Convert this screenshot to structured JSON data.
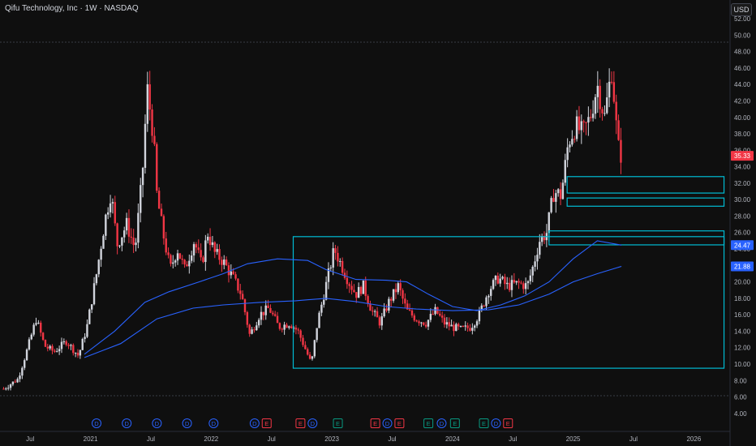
{
  "header": {
    "title": "Qifu Technology, Inc · 1W · NASDAQ",
    "currency": "USD"
  },
  "colors": {
    "background": "#0f0f0f",
    "up": "#d1d4dc",
    "down": "#f23645",
    "zone": "#00bcd4",
    "ma": "#2962ff",
    "last_price_badge": "#f23645",
    "ma_badge": "#2962ff",
    "dividend_marker": "#2962ff",
    "earnings_up_marker": "#089981",
    "earnings_down_marker": "#f23645"
  },
  "chart_data": {
    "type": "candlestick",
    "title": "Qifu Technology, Inc · 1W · NASDAQ",
    "x_tick_labels": [
      "Jul",
      "2021",
      "Jul",
      "2022",
      "Jul",
      "2023",
      "Jul",
      "2024",
      "Jul",
      "2025",
      "Jul",
      "2026"
    ],
    "y_tick_labels": [
      "4.00",
      "6.00",
      "8.00",
      "10.00",
      "12.00",
      "14.00",
      "16.00",
      "18.00",
      "20.00",
      "22.00",
      "24.00",
      "26.00",
      "28.00",
      "30.00",
      "32.00",
      "34.00",
      "36.00",
      "38.00",
      "40.00",
      "42.00",
      "44.00",
      "46.00",
      "48.00",
      "50.00",
      "52.00"
    ],
    "ylim": [
      3,
      52.5
    ],
    "time_range": [
      2020.25,
      2026.3
    ],
    "price_path": [
      [
        2020.28,
        7.0
      ],
      [
        2020.4,
        8.2
      ],
      [
        2020.48,
        12.0
      ],
      [
        2020.55,
        15.5
      ],
      [
        2020.62,
        12.2
      ],
      [
        2020.7,
        11.5
      ],
      [
        2020.8,
        12.8
      ],
      [
        2020.9,
        11.0
      ],
      [
        2020.97,
        14.5
      ],
      [
        2021.05,
        21.0
      ],
      [
        2021.12,
        27.5
      ],
      [
        2021.17,
        31.0
      ],
      [
        2021.22,
        24.5
      ],
      [
        2021.3,
        27.0
      ],
      [
        2021.37,
        24.0
      ],
      [
        2021.43,
        33.0
      ],
      [
        2021.47,
        43.5
      ],
      [
        2021.52,
        38.0
      ],
      [
        2021.55,
        30.5
      ],
      [
        2021.6,
        26.0
      ],
      [
        2021.66,
        21.5
      ],
      [
        2021.72,
        24.0
      ],
      [
        2021.78,
        21.5
      ],
      [
        2021.86,
        25.0
      ],
      [
        2021.92,
        22.0
      ],
      [
        2021.97,
        26.0
      ],
      [
        2022.03,
        23.5
      ],
      [
        2022.1,
        22.5
      ],
      [
        2022.18,
        20.5
      ],
      [
        2022.25,
        18.5
      ],
      [
        2022.32,
        13.5
      ],
      [
        2022.4,
        16.0
      ],
      [
        2022.48,
        16.8
      ],
      [
        2022.56,
        14.5
      ],
      [
        2022.65,
        15.0
      ],
      [
        2022.72,
        14.0
      ],
      [
        2022.79,
        11.5
      ],
      [
        2022.83,
        10.0
      ],
      [
        2022.88,
        15.0
      ],
      [
        2022.95,
        19.5
      ],
      [
        2023.02,
        24.0
      ],
      [
        2023.08,
        22.0
      ],
      [
        2023.14,
        20.0
      ],
      [
        2023.2,
        18.5
      ],
      [
        2023.26,
        19.5
      ],
      [
        2023.33,
        16.5
      ],
      [
        2023.4,
        15.0
      ],
      [
        2023.47,
        17.5
      ],
      [
        2023.55,
        19.5
      ],
      [
        2023.62,
        16.5
      ],
      [
        2023.7,
        15.5
      ],
      [
        2023.78,
        15.0
      ],
      [
        2023.86,
        16.5
      ],
      [
        2023.93,
        15.0
      ],
      [
        2024.0,
        14.5
      ],
      [
        2024.07,
        14.2
      ],
      [
        2024.15,
        14.5
      ],
      [
        2024.22,
        16.0
      ],
      [
        2024.3,
        19.0
      ],
      [
        2024.38,
        20.5
      ],
      [
        2024.45,
        19.5
      ],
      [
        2024.55,
        19.8
      ],
      [
        2024.62,
        19.5
      ],
      [
        2024.67,
        22.0
      ],
      [
        2024.72,
        25.0
      ],
      [
        2024.78,
        26.0
      ],
      [
        2024.84,
        31.0
      ],
      [
        2024.9,
        30.5
      ],
      [
        2024.96,
        37.0
      ],
      [
        2025.02,
        39.0
      ],
      [
        2025.08,
        38.0
      ],
      [
        2025.14,
        40.0
      ],
      [
        2025.2,
        44.0
      ],
      [
        2025.26,
        40.0
      ],
      [
        2025.32,
        46.0
      ],
      [
        2025.37,
        36.5
      ],
      [
        2025.4,
        35.33
      ]
    ],
    "moving_average_1": {
      "values": [
        [
          2020.95,
          11.2
        ],
        [
          2021.2,
          14.0
        ],
        [
          2021.45,
          17.5
        ],
        [
          2021.65,
          18.8
        ],
        [
          2021.9,
          20.0
        ],
        [
          2022.1,
          21.0
        ],
        [
          2022.3,
          22.2
        ],
        [
          2022.55,
          22.8
        ],
        [
          2022.8,
          22.6
        ],
        [
          2022.95,
          21.5
        ],
        [
          2023.2,
          20.3
        ],
        [
          2023.45,
          20.2
        ],
        [
          2023.62,
          20.0
        ],
        [
          2023.8,
          18.5
        ],
        [
          2024.0,
          17.0
        ],
        [
          2024.2,
          16.5
        ],
        [
          2024.4,
          17.2
        ],
        [
          2024.6,
          18.3
        ],
        [
          2024.8,
          20.0
        ],
        [
          2025.0,
          22.8
        ],
        [
          2025.2,
          25.0
        ],
        [
          2025.4,
          24.47
        ]
      ],
      "label": "24.47"
    },
    "moving_average_2": {
      "values": [
        [
          2020.95,
          10.8
        ],
        [
          2021.25,
          12.5
        ],
        [
          2021.55,
          15.5
        ],
        [
          2021.85,
          16.8
        ],
        [
          2022.1,
          17.2
        ],
        [
          2022.4,
          17.5
        ],
        [
          2022.7,
          17.7
        ],
        [
          2022.95,
          18.0
        ],
        [
          2023.2,
          17.6
        ],
        [
          2023.45,
          17.0
        ],
        [
          2023.7,
          16.7
        ],
        [
          2024.0,
          16.5
        ],
        [
          2024.3,
          16.6
        ],
        [
          2024.55,
          17.2
        ],
        [
          2024.8,
          18.5
        ],
        [
          2025.0,
          20.0
        ],
        [
          2025.2,
          21.0
        ],
        [
          2025.4,
          21.88
        ]
      ],
      "label": "21.88"
    },
    "last_price": {
      "value": 35.33,
      "label": "35.33"
    },
    "zones": [
      {
        "x0": 2022.68,
        "x1": 2026.25,
        "y_top": 25.5,
        "y_bottom": 9.5
      },
      {
        "x0": 2024.8,
        "x1": 2026.25,
        "y_top": 26.2,
        "y_bottom": 24.5
      },
      {
        "x0": 2024.95,
        "x1": 2026.25,
        "y_top": 32.8,
        "y_bottom": 30.8
      },
      {
        "x0": 2024.95,
        "x1": 2026.25,
        "y_top": 30.2,
        "y_bottom": 29.2
      }
    ],
    "event_markers": [
      {
        "t": 2021.05,
        "kind": "D",
        "label": "D"
      },
      {
        "t": 2021.3,
        "kind": "D",
        "label": "D"
      },
      {
        "t": 2021.55,
        "kind": "D",
        "label": "D"
      },
      {
        "t": 2021.8,
        "kind": "D",
        "label": "D"
      },
      {
        "t": 2022.02,
        "kind": "D",
        "label": "D"
      },
      {
        "t": 2022.36,
        "kind": "D",
        "label": "D"
      },
      {
        "t": 2022.46,
        "kind": "E-down",
        "label": "E"
      },
      {
        "t": 2022.74,
        "kind": "E-down",
        "label": "E"
      },
      {
        "t": 2022.84,
        "kind": "D",
        "label": "D"
      },
      {
        "t": 2023.05,
        "kind": "E-up",
        "label": "E"
      },
      {
        "t": 2023.36,
        "kind": "E-down",
        "label": "E"
      },
      {
        "t": 2023.46,
        "kind": "D",
        "label": "D"
      },
      {
        "t": 2023.56,
        "kind": "E-down",
        "label": "E"
      },
      {
        "t": 2023.8,
        "kind": "E-up",
        "label": "E"
      },
      {
        "t": 2023.91,
        "kind": "D",
        "label": "D"
      },
      {
        "t": 2024.02,
        "kind": "E-up",
        "label": "E"
      },
      {
        "t": 2024.26,
        "kind": "E-up",
        "label": "E"
      },
      {
        "t": 2024.36,
        "kind": "D",
        "label": "D"
      },
      {
        "t": 2024.46,
        "kind": "E-down",
        "label": "E"
      }
    ]
  }
}
